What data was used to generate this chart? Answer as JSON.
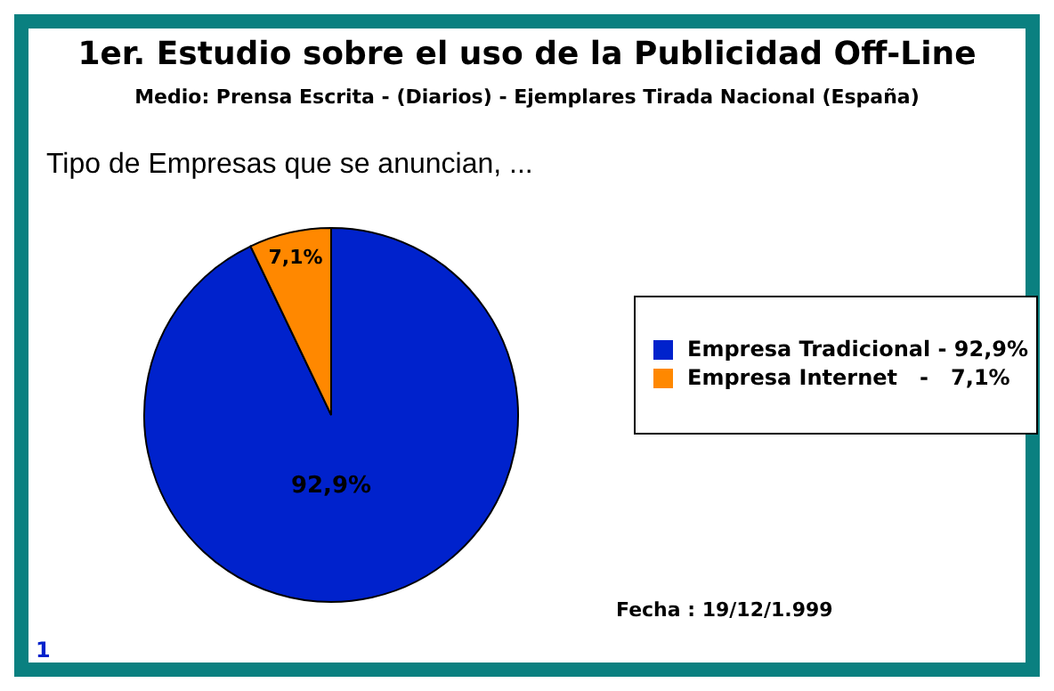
{
  "chart_data": {
    "type": "pie",
    "title": "1er. Estudio sobre el uso de la Publicidad Off-Line",
    "subtitle": "Medio: Prensa Escrita - (Diarios) - Ejemplares Tirada Nacional (España)",
    "legend_title": "Tipo de Empresas que se anuncian, ...",
    "categories": [
      "Empresa Tradicional - 92,9%",
      "Empresa Internet   -   7,1%"
    ],
    "values": [
      92.9,
      7.1
    ],
    "colors": [
      "#0022cc",
      "#ff8800"
    ],
    "value_labels": [
      "92,9%",
      "7,1%"
    ],
    "legend": "right",
    "annotations": [
      "Fecha : 19/12/1.999",
      "1"
    ]
  }
}
